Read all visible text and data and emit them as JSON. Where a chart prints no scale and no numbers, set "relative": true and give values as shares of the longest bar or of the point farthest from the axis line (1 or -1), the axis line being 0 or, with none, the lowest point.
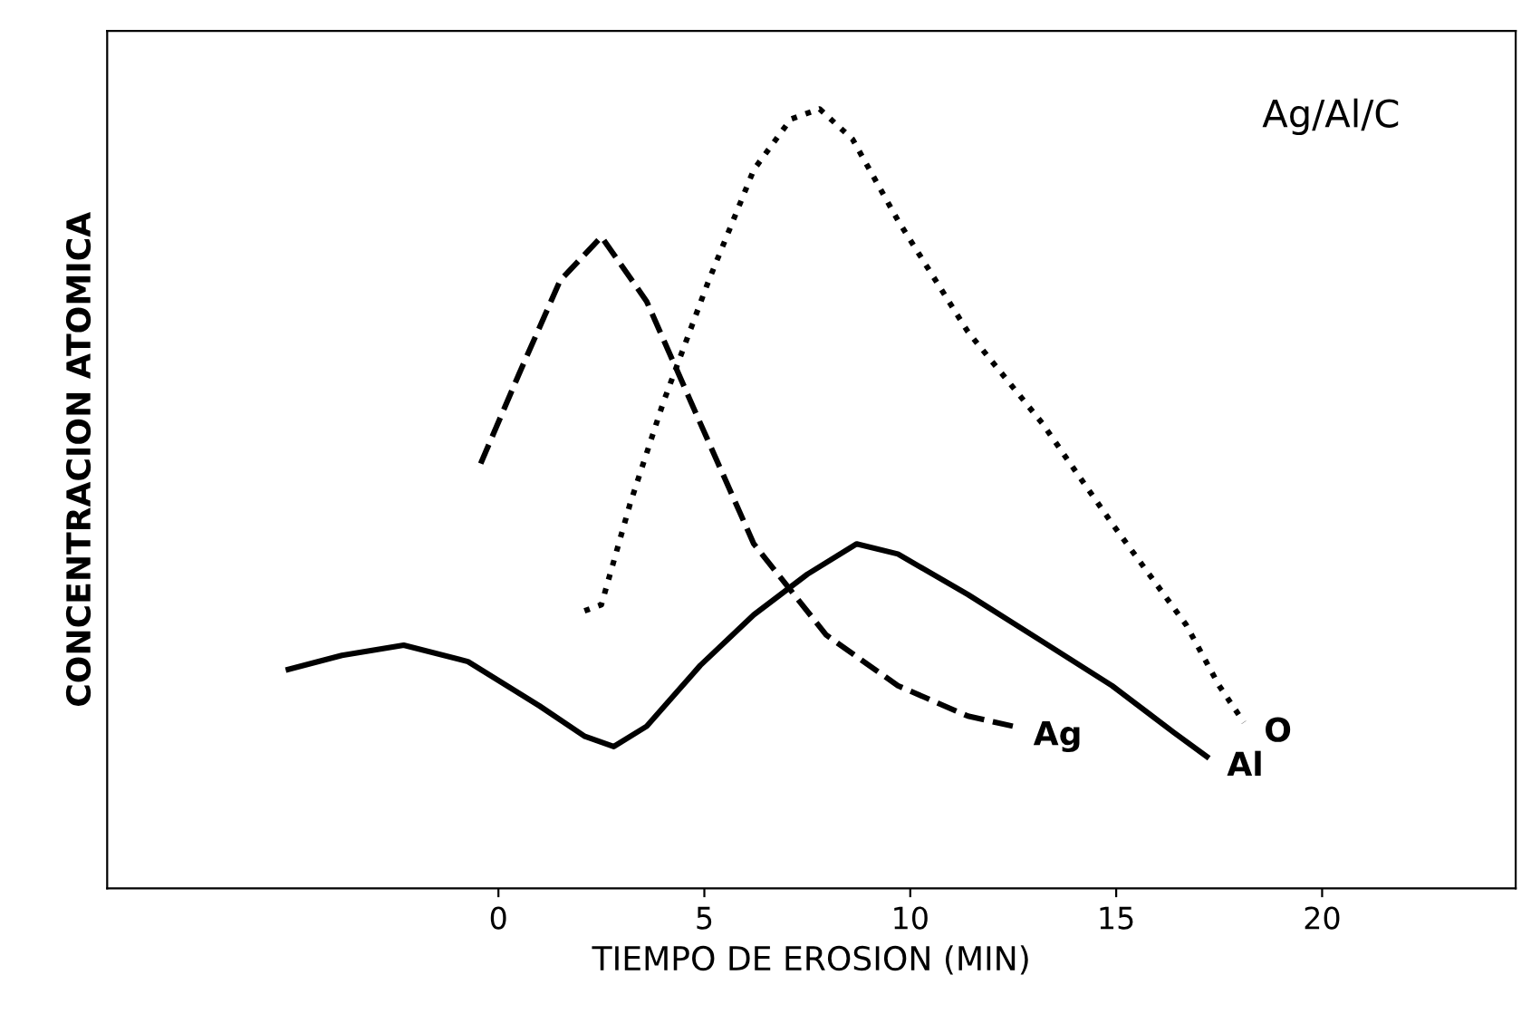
{
  "chart_data": {
    "type": "line",
    "relative": true,
    "xlabel": "TIEMPO DE EROSION (MIN)",
    "ylabel": "CONCENTRACION ATOMICA",
    "annotations": [
      "Ag/Al/C"
    ],
    "xlim": [
      -9.5,
      24.7
    ],
    "xticks": [
      0,
      5,
      10,
      15,
      20
    ],
    "grid": false,
    "legend": false,
    "marker": "none",
    "series": [
      {
        "name": "Ag",
        "color": "#000000",
        "line_style": "dashed",
        "x": [
          -0.43,
          0.5,
          1.5,
          2.5,
          3.6,
          4.9,
          6.2,
          7.96,
          9.7,
          11.4,
          12.5
        ],
        "values": [
          0.545,
          0.66,
          0.78,
          0.836,
          0.753,
          0.597,
          0.442,
          0.325,
          0.26,
          0.221,
          0.208
        ]
      },
      {
        "name": "O",
        "color": "#000000",
        "line_style": "dotted",
        "x": [
          2.09,
          2.5,
          3.2,
          4.0,
          5.1,
          6.2,
          7.1,
          7.8,
          8.6,
          9.7,
          11.4,
          13.2,
          14.9,
          16.7,
          17.5,
          18.1
        ],
        "values": [
          0.356,
          0.364,
          0.494,
          0.623,
          0.779,
          0.922,
          0.987,
          1.0,
          0.961,
          0.857,
          0.714,
          0.597,
          0.468,
          0.338,
          0.26,
          0.213
        ]
      },
      {
        "name": "Al",
        "color": "#000000",
        "line_style": "solid",
        "x": [
          -5.1,
          -3.8,
          -2.3,
          -0.74,
          1.0,
          2.1,
          2.8,
          3.6,
          4.9,
          6.2,
          7.5,
          8.7,
          9.7,
          11.4,
          13.2,
          14.9,
          16.4,
          17.2
        ],
        "values": [
          0.281,
          0.299,
          0.312,
          0.291,
          0.234,
          0.195,
          0.182,
          0.208,
          0.286,
          0.351,
          0.403,
          0.442,
          0.429,
          0.377,
          0.317,
          0.26,
          0.2,
          0.169
        ]
      }
    ]
  }
}
